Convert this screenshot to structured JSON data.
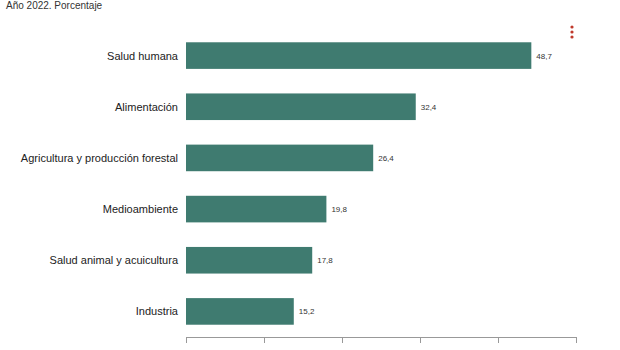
{
  "chart_data": {
    "type": "bar",
    "orientation": "horizontal",
    "subtitle": "Año 2022. Porcentaje",
    "categories": [
      "Salud humana",
      "Alimentación",
      "Agricultura y producción forestal",
      "Medioambiente",
      "Salud animal y acuicultura",
      "Industria"
    ],
    "values": [
      48.7,
      32.4,
      26.4,
      19.8,
      17.8,
      15.2
    ],
    "value_labels": [
      "48,7",
      "32,4",
      "26,4",
      "19,8",
      "17,8",
      "15,2"
    ],
    "color": "#3f7b70",
    "data_labels": true,
    "grid": false,
    "tick_labels": "y",
    "xlim": [
      0,
      55
    ],
    "xticks": [
      0,
      11,
      22,
      33,
      44,
      55
    ]
  }
}
